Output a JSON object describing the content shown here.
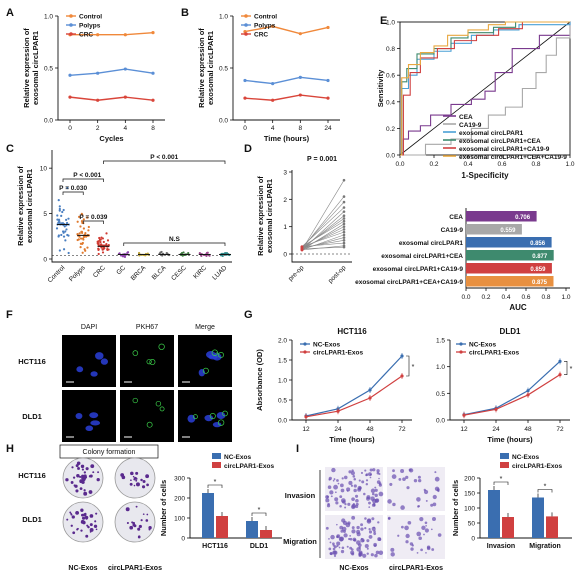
{
  "panelA": {
    "letter": "A",
    "xlabel": "Cycles",
    "ylabel1": "Relative expression of",
    "ylabel2": "exosomal circLPAR1",
    "ylim": [
      0,
      1.0
    ],
    "yticks": [
      "0.0",
      "0.5",
      "1.0"
    ],
    "legend": [
      "Control",
      "Polyps",
      "CRC"
    ],
    "chart_data": {
      "type": "line",
      "x": [
        0,
        2,
        4,
        8
      ],
      "xticks": [
        "0",
        "2",
        "4",
        "8"
      ],
      "series": [
        {
          "name": "Control",
          "values": [
            0.82,
            0.82,
            0.82,
            0.84
          ],
          "color": "#f0883a"
        },
        {
          "name": "Polyps",
          "values": [
            0.43,
            0.45,
            0.49,
            0.45
          ],
          "color": "#5b8fd6"
        },
        {
          "name": "CRC",
          "values": [
            0.22,
            0.19,
            0.22,
            0.19
          ],
          "color": "#d9453a"
        }
      ]
    }
  },
  "panelB": {
    "letter": "B",
    "xlabel": "Time (hours)",
    "ylabel1": "Relative expression of",
    "ylabel2": "exosomal circLPAR1",
    "yticks": [
      "0.0",
      "0.5",
      "1.0"
    ],
    "legend": [
      "Control",
      "Polyps",
      "CRC"
    ],
    "chart_data": {
      "type": "line",
      "x": [
        0,
        4,
        8,
        24
      ],
      "xticks": [
        "0",
        "4",
        "8",
        "24"
      ],
      "series": [
        {
          "name": "Control",
          "values": [
            0.85,
            0.9,
            0.83,
            0.89
          ],
          "color": "#f0883a"
        },
        {
          "name": "Polyps",
          "values": [
            0.38,
            0.35,
            0.41,
            0.38
          ],
          "color": "#5b8fd6"
        },
        {
          "name": "CRC",
          "values": [
            0.21,
            0.19,
            0.24,
            0.21
          ],
          "color": "#d9453a"
        }
      ]
    }
  },
  "panelC": {
    "letter": "C",
    "ylabel1": "Relative expression of",
    "ylabel2": "exosomal circLPAR1",
    "yticks": [
      "0",
      "5",
      "10"
    ],
    "categories": [
      "Control",
      "Polyps",
      "CRC",
      "GC",
      "BRCA",
      "BLCA",
      "CESC",
      "KIRC",
      "LUAD"
    ],
    "colors": [
      "#4a7fc1",
      "#e07a2e",
      "#d03a32",
      "#8e44ad",
      "#c2a83e",
      "#6a6a6a",
      "#3e7a3e",
      "#a04a90",
      "#2e8b8b"
    ],
    "pvals": [
      "P < 0.001",
      "P = 0.030",
      "P = 0.039",
      "P < 0.001",
      "N.S"
    ],
    "chart_data": {
      "type": "scatter",
      "categories": [
        "Control",
        "Polyps",
        "CRC",
        "GC",
        "BRCA",
        "BLCA",
        "CESC",
        "KIRC",
        "LUAD"
      ],
      "means": [
        3.8,
        2.6,
        1.4,
        0.5,
        0.5,
        0.5,
        0.5,
        0.5,
        0.5
      ]
    }
  },
  "panelD": {
    "letter": "D",
    "pval": "P = 0.001",
    "ylabel1": "Relative expression of",
    "ylabel2": "exosomal circLPAR1",
    "yticks": [
      "0",
      "1",
      "2",
      "3"
    ],
    "xticks": [
      "pre-op",
      "post-op"
    ]
  },
  "panelE": {
    "letter": "E",
    "ylabel": "Sensitivity",
    "xlabel": "1-Specificity",
    "ticks": [
      "0.0",
      "0.2",
      "0.4",
      "0.6",
      "0.8",
      "1.0"
    ],
    "legend": [
      {
        "name": "CEA",
        "color": "#7a3a8e"
      },
      {
        "name": "CA19-9",
        "color": "#a8a8a8"
      },
      {
        "name": "exosomal circLPAR1",
        "color": "#4aa0d6"
      },
      {
        "name": "exosomal circLPAR1+CEA",
        "color": "#3e8a6e"
      },
      {
        "name": "exosomal circLPAR1+CA19-9",
        "color": "#d04040"
      },
      {
        "name": "exosomal circLPAR1+CEA+CA19-9",
        "color": "#e8a840"
      }
    ],
    "auc_label": "AUC",
    "auc_ticks": [
      "0.0",
      "0.2",
      "0.4",
      "0.6",
      "0.8",
      "1.0"
    ],
    "chart_data": {
      "type": "bar",
      "categories": [
        "CEA",
        "CA19-9",
        "exosomal circLPAR1",
        "exosomal circLPAR1+CEA",
        "exosomal circLPAR1+CA19-9",
        "exosomal circLPAR1+CEA+CA19-9"
      ],
      "values": [
        0.706,
        0.559,
        0.856,
        0.877,
        0.859,
        0.875
      ],
      "labels": [
        "0.706",
        "0.559",
        "0.856",
        "0.877",
        "0.859",
        "0.875"
      ],
      "colors": [
        "#7a3a8e",
        "#a8a8a8",
        "#3a6eb0",
        "#3e8a6e",
        "#d04040",
        "#e89040"
      ]
    }
  },
  "panelF": {
    "letter": "F",
    "cols": [
      "DAPI",
      "PKH67",
      "Merge"
    ],
    "rows": [
      "HCT116",
      "DLD1"
    ]
  },
  "panelG": {
    "letter": "G",
    "ylabel": "Absorbance (OD)",
    "xlabel": "Time (hours)",
    "legend": [
      "NC-Exos",
      "circLPAR1-Exos"
    ],
    "xticks": [
      "12",
      "24",
      "48",
      "72"
    ],
    "left": {
      "title": "HCT116",
      "yticks": [
        "0.0",
        "0.5",
        "1.0",
        "1.5",
        "2.0"
      ],
      "sig": "*",
      "chart_data": {
        "type": "line",
        "x": [
          12,
          24,
          48,
          72
        ],
        "series": [
          {
            "name": "NC-Exos",
            "values": [
              0.1,
              0.28,
              0.75,
              1.6
            ],
            "color": "#3a6eb0"
          },
          {
            "name": "circLPAR1-Exos",
            "values": [
              0.08,
              0.22,
              0.55,
              1.1
            ],
            "color": "#d04040"
          }
        ]
      }
    },
    "right": {
      "title": "DLD1",
      "yticks": [
        "0.0",
        "0.5",
        "1.0",
        "1.5"
      ],
      "sig": "*",
      "chart_data": {
        "type": "line",
        "x": [
          12,
          24,
          48,
          72
        ],
        "series": [
          {
            "name": "NC-Exos",
            "values": [
              0.1,
              0.22,
              0.55,
              1.1
            ],
            "color": "#3a6eb0"
          },
          {
            "name": "circLPAR1-Exos",
            "values": [
              0.09,
              0.2,
              0.47,
              0.85
            ],
            "color": "#d04040"
          }
        ]
      }
    }
  },
  "panelH": {
    "letter": "H",
    "header": "Colony formation",
    "rows": [
      "HCT116",
      "DLD1"
    ],
    "cols": [
      "NC-Exos",
      "circLPAR1-Exos"
    ],
    "ylabel": "Number of cells",
    "yticks": [
      "0",
      "100",
      "200",
      "300"
    ],
    "legend": [
      "NC-Exos",
      "circLPAR1-Exos"
    ],
    "sig": [
      "*",
      "*"
    ],
    "chart_data": {
      "type": "bar",
      "categories": [
        "HCT116",
        "DLD1"
      ],
      "series": [
        {
          "name": "NC-Exos",
          "values": [
            225,
            85
          ],
          "color": "#3a6eb0"
        },
        {
          "name": "circLPAR1-Exos",
          "values": [
            110,
            40
          ],
          "color": "#d04040"
        }
      ],
      "ylim": [
        0,
        300
      ]
    }
  },
  "panelI": {
    "letter": "I",
    "rows": [
      "Invasion",
      "Migration"
    ],
    "cols": [
      "NC-Exos",
      "circLPAR1-Exos"
    ],
    "ylabel": "Number of cells",
    "yticks": [
      "0",
      "50",
      "100",
      "150",
      "200"
    ],
    "legend": [
      "NC-Exos",
      "circLPAR1-Exos"
    ],
    "sig": [
      "*",
      "*"
    ],
    "chart_data": {
      "type": "bar",
      "categories": [
        "Invasion",
        "Migration"
      ],
      "series": [
        {
          "name": "NC-Exos",
          "values": [
            160,
            135
          ],
          "color": "#3a6eb0"
        },
        {
          "name": "circLPAR1-Exos",
          "values": [
            70,
            72
          ],
          "color": "#d04040"
        }
      ],
      "ylim": [
        0,
        200
      ]
    }
  }
}
